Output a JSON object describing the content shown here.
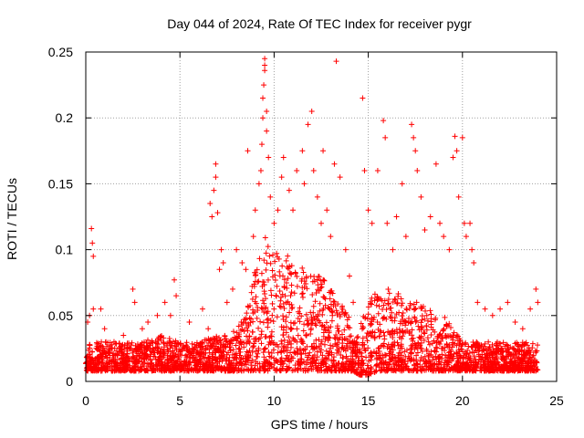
{
  "chart_data": {
    "type": "scatter",
    "title": "Day 044 of 2024, Rate Of TEC Index for receiver pygr",
    "xlabel": "GPS time / hours",
    "ylabel": "ROTI / TECUs",
    "xlim": [
      0,
      25
    ],
    "ylim": [
      0,
      0.25
    ],
    "x_ticks": [
      0,
      5,
      10,
      15,
      20,
      25
    ],
    "x_tick_labels": [
      "0",
      "5",
      "10",
      "15",
      "20",
      "25"
    ],
    "y_ticks": [
      0,
      0.05,
      0.1,
      0.15,
      0.2,
      0.25
    ],
    "y_tick_labels": [
      "0",
      "0.05",
      "0.1",
      "0.15",
      "0.2",
      "0.25"
    ],
    "grid": true,
    "marker": "+",
    "marker_color": "#ff0000",
    "background_envelope": {
      "x": [
        0,
        1,
        2,
        3,
        4,
        5,
        6,
        7,
        8,
        8.5,
        9,
        9.5,
        10,
        10.5,
        11,
        11.5,
        12,
        12.5,
        13,
        13.5,
        14,
        14.2,
        14.5,
        15,
        15.5,
        16,
        16.5,
        17,
        17.5,
        18,
        18.5,
        19,
        19.5,
        20,
        21,
        22,
        23,
        24
      ],
      "floor": [
        0.008,
        0.008,
        0.008,
        0.008,
        0.008,
        0.008,
        0.008,
        0.008,
        0.008,
        0.008,
        0.008,
        0.008,
        0.008,
        0.008,
        0.008,
        0.008,
        0.008,
        0.008,
        0.008,
        0.008,
        0.008,
        0.008,
        0.005,
        0.005,
        0.008,
        0.008,
        0.008,
        0.008,
        0.008,
        0.008,
        0.008,
        0.008,
        0.008,
        0.008,
        0.008,
        0.008,
        0.008,
        0.008
      ],
      "upper": [
        0.03,
        0.03,
        0.03,
        0.03,
        0.035,
        0.03,
        0.03,
        0.035,
        0.04,
        0.05,
        0.09,
        0.11,
        0.1,
        0.1,
        0.09,
        0.09,
        0.08,
        0.08,
        0.07,
        0.06,
        0.05,
        0.03,
        0.04,
        0.06,
        0.07,
        0.07,
        0.07,
        0.06,
        0.06,
        0.06,
        0.05,
        0.05,
        0.04,
        0.03,
        0.03,
        0.03,
        0.03,
        0.03
      ]
    },
    "series": [
      {
        "points": [
          [
            0.1,
            0.045
          ],
          [
            0.2,
            0.05
          ],
          [
            0.3,
            0.116
          ],
          [
            0.35,
            0.105
          ],
          [
            0.4,
            0.095
          ],
          [
            0.4,
            0.055
          ],
          [
            0.8,
            0.055
          ],
          [
            1.0,
            0.04
          ],
          [
            1.5,
            0.03
          ],
          [
            2.0,
            0.035
          ],
          [
            2.5,
            0.07
          ],
          [
            2.6,
            0.06
          ],
          [
            3.0,
            0.04
          ],
          [
            3.3,
            0.045
          ],
          [
            3.8,
            0.05
          ],
          [
            4.2,
            0.06
          ],
          [
            4.5,
            0.05
          ],
          [
            4.7,
            0.077
          ],
          [
            4.8,
            0.065
          ],
          [
            5.5,
            0.045
          ],
          [
            6.2,
            0.055
          ],
          [
            6.5,
            0.04
          ],
          [
            6.6,
            0.135
          ],
          [
            6.7,
            0.125
          ],
          [
            6.8,
            0.145
          ],
          [
            6.9,
            0.165
          ],
          [
            6.9,
            0.155
          ],
          [
            7.0,
            0.128
          ],
          [
            7.1,
            0.085
          ],
          [
            7.2,
            0.1
          ],
          [
            7.3,
            0.09
          ],
          [
            7.5,
            0.06
          ],
          [
            7.8,
            0.07
          ],
          [
            8.0,
            0.1
          ],
          [
            8.3,
            0.09
          ],
          [
            8.5,
            0.085
          ],
          [
            8.6,
            0.175
          ],
          [
            8.9,
            0.11
          ],
          [
            9.0,
            0.13
          ],
          [
            9.2,
            0.15
          ],
          [
            9.3,
            0.16
          ],
          [
            9.35,
            0.18
          ],
          [
            9.4,
            0.2
          ],
          [
            9.4,
            0.215
          ],
          [
            9.45,
            0.225
          ],
          [
            9.5,
            0.236
          ],
          [
            9.5,
            0.245
          ],
          [
            9.5,
            0.24
          ],
          [
            9.6,
            0.205
          ],
          [
            9.6,
            0.19
          ],
          [
            9.7,
            0.17
          ],
          [
            9.8,
            0.14
          ],
          [
            10.0,
            0.12
          ],
          [
            10.2,
            0.13
          ],
          [
            10.4,
            0.155
          ],
          [
            10.5,
            0.17
          ],
          [
            10.8,
            0.145
          ],
          [
            11.0,
            0.13
          ],
          [
            11.2,
            0.16
          ],
          [
            11.5,
            0.175
          ],
          [
            11.6,
            0.15
          ],
          [
            11.8,
            0.195
          ],
          [
            12.0,
            0.205
          ],
          [
            12.1,
            0.16
          ],
          [
            12.3,
            0.14
          ],
          [
            12.5,
            0.12
          ],
          [
            12.6,
            0.175
          ],
          [
            12.8,
            0.13
          ],
          [
            13.0,
            0.11
          ],
          [
            13.2,
            0.165
          ],
          [
            13.3,
            0.243
          ],
          [
            13.5,
            0.155
          ],
          [
            13.8,
            0.1
          ],
          [
            14.0,
            0.08
          ],
          [
            14.2,
            0.06
          ],
          [
            14.7,
            0.215
          ],
          [
            14.8,
            0.16
          ],
          [
            15.0,
            0.13
          ],
          [
            15.2,
            0.12
          ],
          [
            15.5,
            0.16
          ],
          [
            15.8,
            0.198
          ],
          [
            15.9,
            0.185
          ],
          [
            16.0,
            0.12
          ],
          [
            16.3,
            0.1
          ],
          [
            16.5,
            0.125
          ],
          [
            16.8,
            0.15
          ],
          [
            17.0,
            0.11
          ],
          [
            17.3,
            0.195
          ],
          [
            17.4,
            0.185
          ],
          [
            17.5,
            0.175
          ],
          [
            17.6,
            0.16
          ],
          [
            17.8,
            0.14
          ],
          [
            18.0,
            0.115
          ],
          [
            18.3,
            0.125
          ],
          [
            18.6,
            0.165
          ],
          [
            18.8,
            0.12
          ],
          [
            19.0,
            0.11
          ],
          [
            19.3,
            0.1
          ],
          [
            19.5,
            0.17
          ],
          [
            19.6,
            0.186
          ],
          [
            19.7,
            0.175
          ],
          [
            19.8,
            0.14
          ],
          [
            20.0,
            0.185
          ],
          [
            20.1,
            0.12
          ],
          [
            20.2,
            0.11
          ],
          [
            20.4,
            0.12
          ],
          [
            20.5,
            0.1
          ],
          [
            20.6,
            0.09
          ],
          [
            20.8,
            0.06
          ],
          [
            21.2,
            0.055
          ],
          [
            21.6,
            0.05
          ],
          [
            22.0,
            0.055
          ],
          [
            22.4,
            0.06
          ],
          [
            22.8,
            0.045
          ],
          [
            23.2,
            0.04
          ],
          [
            23.6,
            0.055
          ],
          [
            23.9,
            0.07
          ],
          [
            24.0,
            0.06
          ]
        ]
      }
    ]
  }
}
